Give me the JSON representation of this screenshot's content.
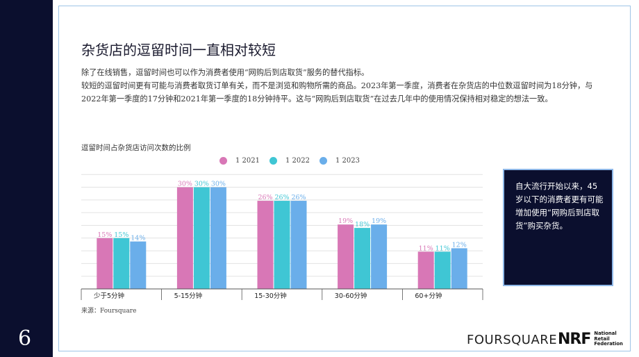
{
  "page": {
    "number": "6"
  },
  "title": "杂货店的逗留时间一直相对较短",
  "body": {
    "line1": "除了在线销售，逗留时间也可以作为消费者使用“网购后到店取货”服务的替代指标。",
    "line2": "较短的逗留时间更有可能与消费者取货订单有关，而不是浏览和购物所需的商品。2023年第一季度，消费者在杂货店的中位数逗留时间为18分钟，与2022年第一季度的17分钟和2021年第一季度的18分钟持平。这与“网购后到店取货”在过去几年中的使用情况保持相对稳定的想法一致。"
  },
  "chart_data": {
    "type": "bar",
    "title": "逗留时间占杂货店访问次数的比例",
    "categories": [
      "少于5分钟",
      "5-15分钟",
      "15-30分钟",
      "30-60分钟",
      "60+分钟"
    ],
    "series": [
      {
        "name": "1 2021",
        "color": "#d877b6",
        "values": [
          15,
          30,
          26,
          19,
          11
        ],
        "labels": [
          "15%",
          "30%",
          "26%",
          "19%",
          "11%"
        ]
      },
      {
        "name": "1 2022",
        "color": "#3fc6d4",
        "values": [
          15,
          30,
          26,
          18,
          11
        ],
        "labels": [
          "15%",
          "30%",
          "26%",
          "18%",
          "11%"
        ]
      },
      {
        "name": "1 2023",
        "color": "#6aaeea",
        "values": [
          14,
          30,
          26,
          19,
          12
        ],
        "labels": [
          "14%",
          "30%",
          "26%",
          "19%",
          "12%"
        ]
      }
    ],
    "ylim": [
      0,
      34
    ],
    "grid": true,
    "legend_position": "top-center"
  },
  "source": "来源：Foursquare",
  "callout": "自大流行开始以来，45岁以下的消费者更有可能增加使用“网购后到店取货”购买杂货。",
  "logos": {
    "foursquare": "FOURSQUARE",
    "nrf_mark": "NRF",
    "nrf_line1": "National",
    "nrf_line2": "Retail",
    "nrf_line3": "Federation"
  }
}
